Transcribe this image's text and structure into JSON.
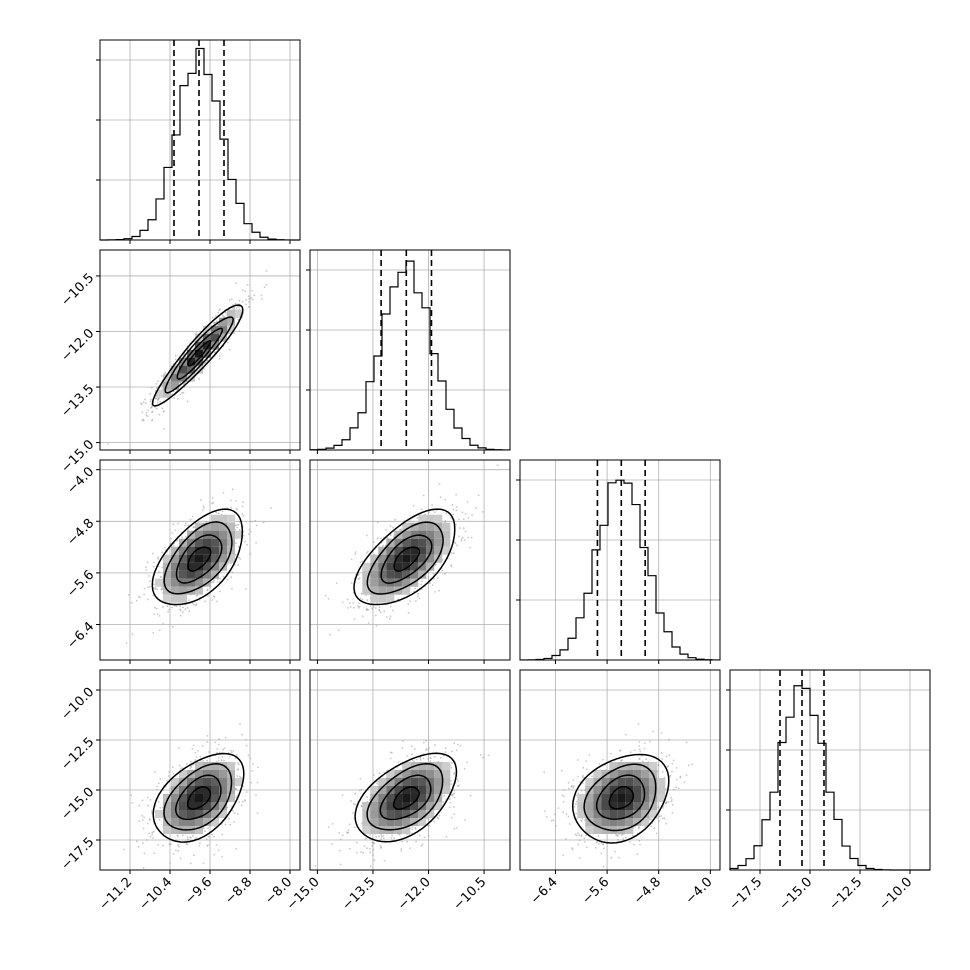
{
  "chart_data": {
    "type": "corner",
    "grid": true,
    "colors": {
      "hist": "#000000",
      "contour": "#000000",
      "points": "#9a9a9a",
      "grid": "#b0b0b0"
    },
    "params": [
      {
        "range": [
          -11.8,
          -7.8
        ],
        "ticks": [
          -11.2,
          -10.4,
          -9.6,
          -8.8,
          -8.0
        ],
        "tick_labels": [
          "−11.2",
          "−10.4",
          "−9.6",
          "−8.8",
          "−8.0"
        ],
        "mean": -9.82,
        "sd": 0.45,
        "quantiles": [
          -10.32,
          -9.82,
          -9.32
        ]
      },
      {
        "range": [
          -15.2,
          -9.8
        ],
        "ticks": [
          -15.0,
          -13.5,
          -12.0,
          -10.5
        ],
        "tick_labels": [
          "−15.0",
          "−13.5",
          "−12.0",
          "−10.5"
        ],
        "mean": -12.6,
        "sd": 0.68,
        "quantiles": [
          -13.28,
          -12.6,
          -11.92
        ]
      },
      {
        "range": [
          -6.95,
          -3.85
        ],
        "ticks": [
          -6.4,
          -5.6,
          -4.8,
          -4.0
        ],
        "tick_labels": [
          "−6.4",
          "−5.6",
          "−4.8",
          "−4.0"
        ],
        "mean": -5.38,
        "sd": 0.37,
        "quantiles": [
          -5.75,
          -5.38,
          -5.01
        ]
      },
      {
        "range": [
          -19.0,
          -9.0
        ],
        "ticks": [
          -17.5,
          -15.0,
          -12.5,
          -10.0
        ],
        "tick_labels": [
          "−17.5",
          "−15.0",
          "−12.5",
          "−10.0"
        ],
        "mean": -15.4,
        "sd": 1.1,
        "quantiles": [
          -16.5,
          -15.4,
          -14.3
        ]
      }
    ],
    "correlations": [
      [
        1.0,
        0.93,
        0.55,
        0.45
      ],
      [
        0.93,
        1.0,
        0.6,
        0.5
      ],
      [
        0.55,
        0.6,
        1.0,
        0.28
      ],
      [
        0.45,
        0.5,
        0.28,
        1.0
      ]
    ]
  }
}
